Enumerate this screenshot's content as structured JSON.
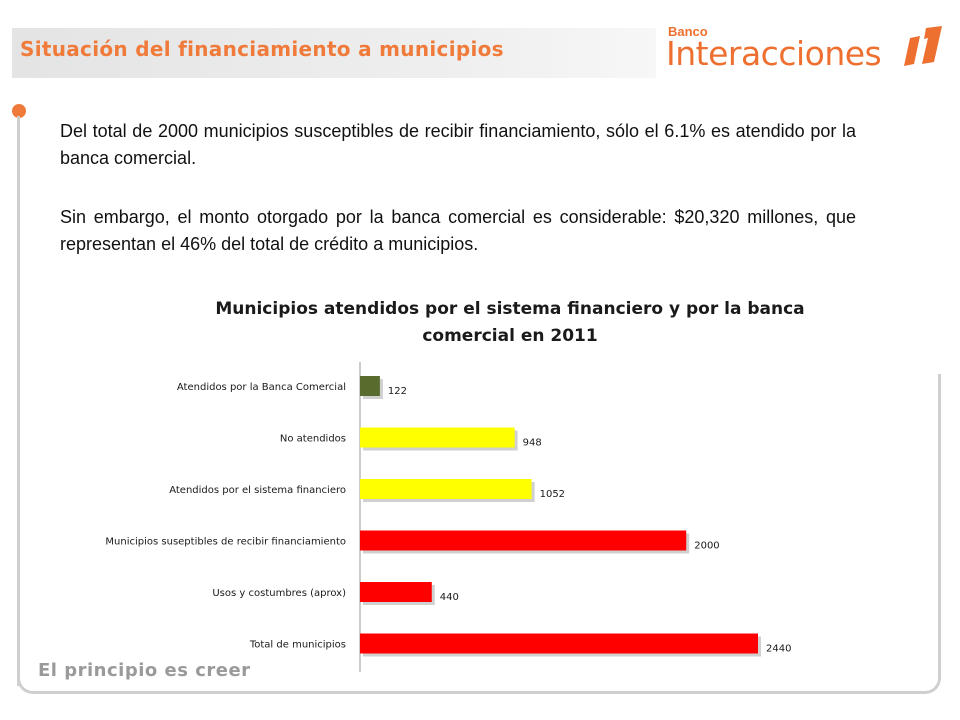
{
  "slide": {
    "title": "Situación del financiamiento a municipios",
    "footer": "El principio es creer"
  },
  "logo": {
    "small": "Banco",
    "big": "Interacciones",
    "color": "#ee7030"
  },
  "body": {
    "paragraph1": "Del total de 2000 municipios susceptibles de recibir financiamiento, sólo el 6.1% es atendido por la banca comercial.",
    "paragraph2": "Sin embargo, el monto otorgado por la banca comercial es considerable: $20,320 millones, que representan el 46% del total de crédito a municipios."
  },
  "chart_data": {
    "type": "bar",
    "orientation": "horizontal",
    "title": "Municipios atendidos por el sistema financiero y por la banca comercial en 2011",
    "categories": [
      "Atendidos por la Banca Comercial",
      "No atendidos",
      "Atendidos por el sistema financiero",
      "Municipios suseptibles de recibir financiamiento",
      "Usos y costumbres  (aprox)",
      "Total de municipios"
    ],
    "values": [
      122,
      948,
      1052,
      2000,
      440,
      2440
    ],
    "data_labels": [
      "122",
      "948",
      "1052",
      "2000",
      "440",
      "2440"
    ],
    "bar_colors": [
      "#5a6b2e",
      "#ffff00",
      "#ffff00",
      "#ff0000",
      "#ff0000",
      "#ff0000"
    ],
    "xlim": [
      0,
      2440
    ],
    "grid": false,
    "legend": "none"
  }
}
